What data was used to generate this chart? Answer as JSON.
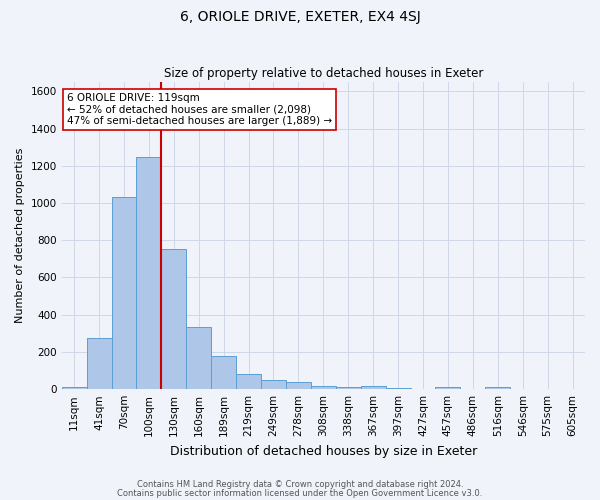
{
  "title": "6, ORIOLE DRIVE, EXETER, EX4 4SJ",
  "subtitle": "Size of property relative to detached houses in Exeter",
  "xlabel": "Distribution of detached houses by size in Exeter",
  "ylabel": "Number of detached properties",
  "footnote1": "Contains HM Land Registry data © Crown copyright and database right 2024.",
  "footnote2": "Contains public sector information licensed under the Open Government Licence v3.0.",
  "bin_labels": [
    "11sqm",
    "41sqm",
    "70sqm",
    "100sqm",
    "130sqm",
    "160sqm",
    "189sqm",
    "219sqm",
    "249sqm",
    "278sqm",
    "308sqm",
    "338sqm",
    "367sqm",
    "397sqm",
    "427sqm",
    "457sqm",
    "486sqm",
    "516sqm",
    "546sqm",
    "575sqm",
    "605sqm"
  ],
  "bar_values": [
    10,
    275,
    1035,
    1250,
    755,
    335,
    180,
    80,
    50,
    38,
    15,
    10,
    15,
    8,
    0,
    10,
    0,
    12,
    0,
    0,
    0
  ],
  "bar_color": "#aec6e8",
  "bar_edge_color": "#5a9fd4",
  "vline_color": "#cc0000",
  "annotation_text": "6 ORIOLE DRIVE: 119sqm\n← 52% of detached houses are smaller (2,098)\n47% of semi-detached houses are larger (1,889) →",
  "annotation_box_facecolor": "#ffffff",
  "annotation_border_color": "#cc0000",
  "grid_color": "#d0d8e8",
  "background_color": "#f0f4fa",
  "ylim": [
    0,
    1650
  ],
  "yticks": [
    0,
    200,
    400,
    600,
    800,
    1000,
    1200,
    1400,
    1600
  ],
  "vline_pos": 4.0,
  "title_fontsize": 10,
  "subtitle_fontsize": 8.5,
  "ylabel_fontsize": 8,
  "xlabel_fontsize": 9,
  "tick_fontsize": 7.5,
  "annotation_fontsize": 7.5
}
